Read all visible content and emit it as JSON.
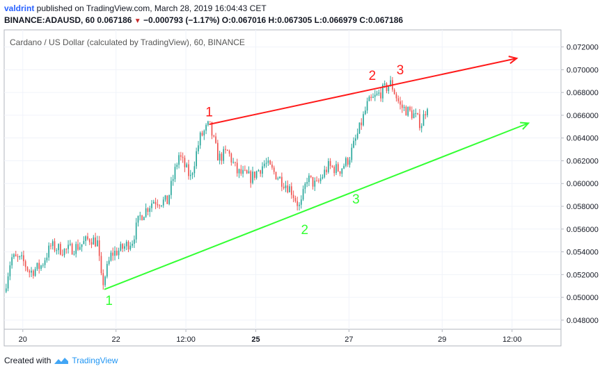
{
  "header": {
    "user": "valdrint",
    "published": " published on TradingView.com, March 28, 2019 16:04:43 CET",
    "symbol": "BINANCE:ADAUSD, 60",
    "last": "0.067186",
    "change": "−0.000793 (−1.17%)",
    "open_label": "O:",
    "open": "0.067016",
    "high_label": "H:",
    "high": "0.067305",
    "low_label": "L:",
    "low": "0.066979",
    "close_label": "C:",
    "close": "0.067186"
  },
  "footer": {
    "created_with": "Created with",
    "brand": "TradingView"
  },
  "colors": {
    "up": "#26a69a",
    "down": "#ef5350",
    "resistance": "#ff1a1a",
    "support": "#33ff33",
    "axis_text": "#131722"
  },
  "chart_data": {
    "type": "candlestick",
    "title": "Cardano / US Dollar (calculated by TradingView), 60, BINANCE",
    "y_ticks": [
      "0.048000",
      "0.050000",
      "0.052000",
      "0.054000",
      "0.056000",
      "0.058000",
      "0.060000",
      "0.062000",
      "0.064000",
      "0.066000",
      "0.068000",
      "0.070000",
      "0.072000"
    ],
    "ylim": [
      0.0472,
      0.0735
    ],
    "x_ticks": [
      {
        "label": "20",
        "t": 0.4,
        "bold": false
      },
      {
        "label": "22",
        "t": 2.4,
        "bold": false
      },
      {
        "label": "12:00",
        "t": 3.9,
        "bold": false
      },
      {
        "label": "25",
        "t": 5.4,
        "bold": true
      },
      {
        "label": "27",
        "t": 7.4,
        "bold": false
      },
      {
        "label": "29",
        "t": 9.4,
        "bold": false
      },
      {
        "label": "12:00",
        "t": 10.9,
        "bold": false
      }
    ],
    "xlim": [
      0,
      11.95
    ],
    "price_path": [
      [
        0.0,
        0.0505
      ],
      [
        0.15,
        0.0535
      ],
      [
        0.4,
        0.0532
      ],
      [
        0.55,
        0.0522
      ],
      [
        0.8,
        0.0528
      ],
      [
        1.0,
        0.0545
      ],
      [
        1.3,
        0.0541
      ],
      [
        1.6,
        0.0545
      ],
      [
        1.85,
        0.0552
      ],
      [
        2.0,
        0.0548
      ],
      [
        2.1,
        0.051
      ],
      [
        2.3,
        0.0538
      ],
      [
        2.5,
        0.0542
      ],
      [
        2.75,
        0.055
      ],
      [
        2.9,
        0.057
      ],
      [
        3.2,
        0.0585
      ],
      [
        3.5,
        0.0584
      ],
      [
        3.75,
        0.0625
      ],
      [
        4.0,
        0.0605
      ],
      [
        4.2,
        0.064
      ],
      [
        4.4,
        0.0652
      ],
      [
        4.6,
        0.0622
      ],
      [
        4.8,
        0.0628
      ],
      [
        5.0,
        0.061
      ],
      [
        5.3,
        0.0605
      ],
      [
        5.6,
        0.0618
      ],
      [
        5.9,
        0.0605
      ],
      [
        6.15,
        0.0595
      ],
      [
        6.35,
        0.0578
      ],
      [
        6.5,
        0.0605
      ],
      [
        6.7,
        0.0598
      ],
      [
        6.95,
        0.0615
      ],
      [
        7.2,
        0.0612
      ],
      [
        7.4,
        0.0622
      ],
      [
        7.6,
        0.0645
      ],
      [
        7.8,
        0.067
      ],
      [
        8.0,
        0.0677
      ],
      [
        8.3,
        0.0688
      ],
      [
        8.5,
        0.0668
      ],
      [
        8.8,
        0.066
      ],
      [
        8.95,
        0.0652
      ],
      [
        9.1,
        0.0672
      ]
    ],
    "trendlines": [
      {
        "name": "resistance",
        "x1": 4.4,
        "y1": 0.0652,
        "x2": 11.0,
        "y2": 0.071,
        "arrow": true
      },
      {
        "name": "support",
        "x1": 2.15,
        "y1": 0.0507,
        "x2": 11.25,
        "y2": 0.0653,
        "arrow": true
      }
    ],
    "annotations": [
      {
        "text": "1",
        "x": 4.4,
        "y": 0.0659,
        "color": "resistance"
      },
      {
        "text": "2",
        "x": 7.9,
        "y": 0.0691,
        "color": "resistance"
      },
      {
        "text": "3",
        "x": 8.5,
        "y": 0.0696,
        "color": "resistance"
      },
      {
        "text": "1",
        "x": 2.25,
        "y": 0.04935,
        "color": "support"
      },
      {
        "text": "2",
        "x": 6.45,
        "y": 0.05555,
        "color": "support"
      },
      {
        "text": "3",
        "x": 7.55,
        "y": 0.05825,
        "color": "support"
      }
    ]
  }
}
